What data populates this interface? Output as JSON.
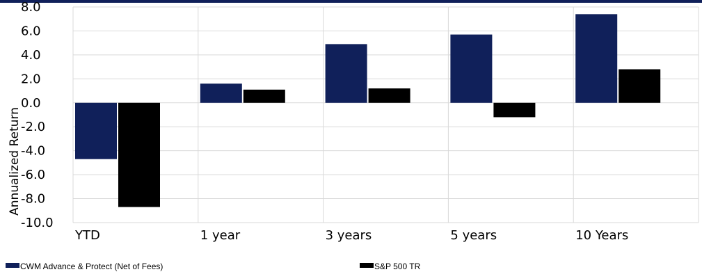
{
  "chart_data": {
    "type": "bar",
    "categories": [
      "YTD",
      "1 year",
      "3 years",
      "5 years",
      "10 Years"
    ],
    "series": [
      {
        "name": "CWM Advance & Protect (Net of Fees)",
        "color": "#10205a",
        "values": [
          -4.7,
          1.6,
          4.9,
          5.7,
          7.4
        ]
      },
      {
        "name": "S&P 500 TR",
        "color": "#000000",
        "values": [
          -8.7,
          1.1,
          1.2,
          -1.2,
          2.8
        ]
      }
    ],
    "ylabel": "Annualized Return",
    "ylim": [
      -10,
      8
    ],
    "yticks": [
      "8.0",
      "6.0",
      "4.0",
      "2.0",
      "0.0",
      "-2.0",
      "-4.0",
      "-6.0",
      "-8.0",
      "-10.0"
    ],
    "grid": true,
    "legend": "bottom"
  }
}
